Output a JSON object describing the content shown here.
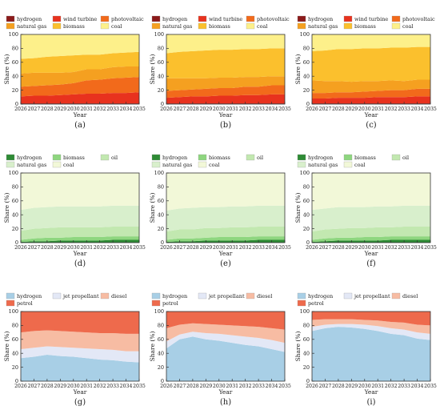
{
  "figure": {
    "panel_labels": [
      "(a)",
      "(b)",
      "(c)",
      "(d)",
      "(e)",
      "(f)",
      "(g)",
      "(h)",
      "(i)"
    ]
  },
  "chart_data": [
    {
      "type": "area",
      "panel": "(a)",
      "stacked": true,
      "x": [
        2026,
        2027,
        2028,
        2029,
        2030,
        2031,
        2032,
        2033,
        2034,
        2035
      ],
      "xlabel": "Year",
      "ylabel": "Share (%)",
      "ylim": [
        0,
        100
      ],
      "yticks": [
        0,
        20,
        40,
        60,
        80,
        100
      ],
      "legend": "top",
      "series": [
        {
          "name": "hydrogen",
          "color": "#8b1a1a",
          "values": [
            1,
            1,
            1,
            1,
            1,
            1,
            1,
            1,
            1,
            1
          ]
        },
        {
          "name": "wind turbine",
          "color": "#e8321e",
          "values": [
            10,
            11,
            11,
            12,
            13,
            14,
            14,
            15,
            15,
            16
          ]
        },
        {
          "name": "photovoltaic",
          "color": "#f26a1b",
          "values": [
            14,
            14,
            15,
            15,
            16,
            19,
            20,
            21,
            22,
            22
          ]
        },
        {
          "name": "natural gas",
          "color": "#f5a020",
          "values": [
            19,
            19,
            18,
            17,
            16,
            16,
            15,
            16,
            16,
            15
          ]
        },
        {
          "name": "biomass",
          "color": "#fbc02d",
          "values": [
            21,
            21,
            23,
            24,
            24,
            21,
            21,
            20,
            20,
            21
          ]
        },
        {
          "name": "coal",
          "color": "#fdf08a",
          "values": [
            35,
            34,
            32,
            31,
            30,
            29,
            29,
            27,
            26,
            25
          ]
        }
      ]
    },
    {
      "type": "area",
      "panel": "(b)",
      "stacked": true,
      "x": [
        2026,
        2027,
        2028,
        2029,
        2030,
        2031,
        2032,
        2033,
        2034,
        2035
      ],
      "xlabel": "Year",
      "ylabel": "Share (%)",
      "ylim": [
        0,
        100
      ],
      "yticks": [
        0,
        20,
        40,
        60,
        80,
        100
      ],
      "legend": "top",
      "series": [
        {
          "name": "hydrogen",
          "color": "#8b1a1a",
          "values": [
            1,
            1,
            1,
            1,
            1,
            1,
            1,
            1,
            1,
            1
          ]
        },
        {
          "name": "wind turbine",
          "color": "#e8321e",
          "values": [
            8,
            9,
            10,
            10,
            11,
            11,
            12,
            12,
            13,
            13
          ]
        },
        {
          "name": "photovoltaic",
          "color": "#f26a1b",
          "values": [
            10,
            10,
            10,
            11,
            11,
            11,
            12,
            12,
            13,
            13
          ]
        },
        {
          "name": "natural gas",
          "color": "#f5a020",
          "values": [
            18,
            17,
            16,
            15,
            15,
            15,
            14,
            14,
            13,
            13
          ]
        },
        {
          "name": "biomass",
          "color": "#fbc02d",
          "values": [
            36,
            38,
            39,
            40,
            40,
            40,
            40,
            40,
            40,
            40
          ]
        },
        {
          "name": "coal",
          "color": "#fdf08a",
          "values": [
            27,
            25,
            24,
            23,
            22,
            22,
            21,
            21,
            20,
            20
          ]
        }
      ]
    },
    {
      "type": "area",
      "panel": "(c)",
      "stacked": true,
      "x": [
        2026,
        2027,
        2028,
        2029,
        2030,
        2031,
        2032,
        2033,
        2034,
        2035
      ],
      "xlabel": "Year",
      "ylabel": "Share (%)",
      "ylim": [
        0,
        100
      ],
      "yticks": [
        0,
        20,
        40,
        60,
        80,
        100
      ],
      "legend": "top",
      "series": [
        {
          "name": "hydrogen",
          "color": "#8b1a1a",
          "values": [
            1,
            1,
            1,
            1,
            1,
            1,
            1,
            1,
            1,
            1
          ]
        },
        {
          "name": "wind turbine",
          "color": "#e8321e",
          "values": [
            7,
            7,
            8,
            8,
            8,
            9,
            9,
            9,
            10,
            10
          ]
        },
        {
          "name": "photovoltaic",
          "color": "#f26a1b",
          "values": [
            8,
            8,
            8,
            8,
            9,
            9,
            10,
            10,
            11,
            11
          ]
        },
        {
          "name": "natural gas",
          "color": "#f5a020",
          "values": [
            18,
            17,
            16,
            15,
            15,
            14,
            14,
            13,
            13,
            13
          ]
        },
        {
          "name": "biomass",
          "color": "#fbc02d",
          "values": [
            42,
            44,
            46,
            47,
            47,
            47,
            47,
            48,
            47,
            47
          ]
        },
        {
          "name": "coal",
          "color": "#fdf08a",
          "values": [
            24,
            23,
            21,
            21,
            20,
            20,
            19,
            19,
            18,
            18
          ]
        }
      ]
    },
    {
      "type": "area",
      "panel": "(d)",
      "stacked": true,
      "x": [
        2026,
        2027,
        2028,
        2029,
        2030,
        2031,
        2032,
        2033,
        2034,
        2035
      ],
      "xlabel": "Year",
      "ylabel": "Share (%)",
      "ylim": [
        0,
        100
      ],
      "yticks": [
        0,
        20,
        40,
        60,
        80,
        100
      ],
      "legend": "top",
      "series": [
        {
          "name": "hydrogen",
          "color": "#2e8b35",
          "values": [
            1,
            2,
            2,
            3,
            3,
            3,
            3,
            4,
            4,
            4
          ]
        },
        {
          "name": "biomass",
          "color": "#8ed67f",
          "values": [
            3,
            4,
            5,
            4,
            5,
            5,
            5,
            5,
            5,
            5
          ]
        },
        {
          "name": "oil",
          "color": "#c2e8b0",
          "values": [
            13,
            14,
            14,
            15,
            14,
            14,
            14,
            14,
            14,
            14
          ]
        },
        {
          "name": "natural gas",
          "color": "#d8efcc",
          "values": [
            30,
            30,
            30,
            30,
            30,
            30,
            30,
            30,
            30,
            30
          ]
        },
        {
          "name": "coal",
          "color": "#f2f8d8",
          "values": [
            53,
            50,
            49,
            48,
            48,
            48,
            48,
            47,
            47,
            47
          ]
        }
      ]
    },
    {
      "type": "area",
      "panel": "(e)",
      "stacked": true,
      "x": [
        2026,
        2027,
        2028,
        2029,
        2030,
        2031,
        2032,
        2033,
        2034,
        2035
      ],
      "xlabel": "Year",
      "ylabel": "Share (%)",
      "ylim": [
        0,
        100
      ],
      "yticks": [
        0,
        20,
        40,
        60,
        80,
        100
      ],
      "legend": "top",
      "series": [
        {
          "name": "hydrogen",
          "color": "#2e8b35",
          "values": [
            1,
            2,
            2,
            3,
            3,
            3,
            3,
            4,
            4,
            4
          ]
        },
        {
          "name": "biomass",
          "color": "#8ed67f",
          "values": [
            3,
            4,
            4,
            4,
            5,
            5,
            5,
            5,
            5,
            5
          ]
        },
        {
          "name": "oil",
          "color": "#c2e8b0",
          "values": [
            12,
            13,
            13,
            14,
            13,
            14,
            14,
            14,
            14,
            14
          ]
        },
        {
          "name": "natural gas",
          "color": "#d8efcc",
          "values": [
            30,
            30,
            31,
            30,
            30,
            30,
            30,
            30,
            30,
            30
          ]
        },
        {
          "name": "coal",
          "color": "#f2f8d8",
          "values": [
            54,
            51,
            50,
            49,
            49,
            48,
            48,
            47,
            47,
            47
          ]
        }
      ]
    },
    {
      "type": "area",
      "panel": "(f)",
      "stacked": true,
      "x": [
        2026,
        2027,
        2028,
        2029,
        2030,
        2031,
        2032,
        2033,
        2034,
        2035
      ],
      "xlabel": "Year",
      "ylabel": "Share (%)",
      "ylim": [
        0,
        100
      ],
      "yticks": [
        0,
        20,
        40,
        60,
        80,
        100
      ],
      "legend": "top",
      "series": [
        {
          "name": "hydrogen",
          "color": "#2e8b35",
          "values": [
            1,
            2,
            3,
            3,
            3,
            3,
            4,
            4,
            4,
            4
          ]
        },
        {
          "name": "biomass",
          "color": "#8ed67f",
          "values": [
            3,
            4,
            4,
            4,
            5,
            5,
            5,
            5,
            5,
            5
          ]
        },
        {
          "name": "oil",
          "color": "#c2e8b0",
          "values": [
            12,
            13,
            13,
            14,
            13,
            14,
            13,
            14,
            14,
            14
          ]
        },
        {
          "name": "natural gas",
          "color": "#d8efcc",
          "values": [
            31,
            30,
            31,
            30,
            30,
            30,
            30,
            30,
            30,
            30
          ]
        },
        {
          "name": "coal",
          "color": "#f2f8d8",
          "values": [
            53,
            51,
            49,
            49,
            49,
            48,
            48,
            47,
            47,
            47
          ]
        }
      ]
    },
    {
      "type": "area",
      "panel": "(g)",
      "stacked": true,
      "x": [
        2026,
        2027,
        2028,
        2029,
        2030,
        2031,
        2032,
        2033,
        2034,
        2035
      ],
      "xlabel": "Year",
      "ylabel": "Share (%)",
      "ylim": [
        0,
        100
      ],
      "yticks": [
        0,
        20,
        40,
        60,
        80,
        100
      ],
      "legend": "top",
      "series": [
        {
          "name": "hydrogen",
          "color": "#a8cfe6",
          "values": [
            33,
            35,
            38,
            36,
            35,
            33,
            31,
            30,
            28,
            27
          ]
        },
        {
          "name": "jet propellant",
          "color": "#e3e8f6",
          "values": [
            13,
            13,
            12,
            13,
            13,
            14,
            15,
            15,
            15,
            16
          ]
        },
        {
          "name": "diesel",
          "color": "#f7bca3",
          "values": [
            24,
            24,
            23,
            23,
            23,
            23,
            23,
            24,
            25,
            25
          ]
        },
        {
          "name": "petrol",
          "color": "#ee6a4c",
          "values": [
            30,
            28,
            27,
            28,
            29,
            30,
            31,
            31,
            32,
            32
          ]
        }
      ]
    },
    {
      "type": "area",
      "panel": "(h)",
      "stacked": true,
      "x": [
        2026,
        2027,
        2028,
        2029,
        2030,
        2031,
        2032,
        2033,
        2034,
        2035
      ],
      "xlabel": "Year",
      "ylabel": "Share (%)",
      "ylim": [
        0,
        100
      ],
      "yticks": [
        0,
        20,
        40,
        60,
        80,
        100
      ],
      "legend": "top",
      "series": [
        {
          "name": "hydrogen",
          "color": "#a8cfe6",
          "values": [
            47,
            60,
            64,
            60,
            58,
            55,
            52,
            50,
            46,
            42
          ]
        },
        {
          "name": "jet propellant",
          "color": "#e3e8f6",
          "values": [
            10,
            7,
            7,
            9,
            10,
            11,
            12,
            12,
            13,
            13
          ]
        },
        {
          "name": "diesel",
          "color": "#f7bca3",
          "values": [
            19,
            14,
            12,
            13,
            13,
            14,
            15,
            16,
            17,
            19
          ]
        },
        {
          "name": "petrol",
          "color": "#ee6a4c",
          "values": [
            24,
            19,
            17,
            18,
            19,
            20,
            21,
            22,
            24,
            26
          ]
        }
      ]
    },
    {
      "type": "area",
      "panel": "(i)",
      "stacked": true,
      "x": [
        2026,
        2027,
        2028,
        2029,
        2030,
        2031,
        2032,
        2033,
        2034,
        2035
      ],
      "xlabel": "Year",
      "ylabel": "Share (%)",
      "ylim": [
        0,
        100
      ],
      "yticks": [
        0,
        20,
        40,
        60,
        80,
        100
      ],
      "legend": "top",
      "series": [
        {
          "name": "hydrogen",
          "color": "#a8cfe6",
          "values": [
            72,
            76,
            78,
            77,
            75,
            72,
            68,
            66,
            61,
            59
          ]
        },
        {
          "name": "jet propellant",
          "color": "#e3e8f6",
          "values": [
            6,
            5,
            4,
            5,
            6,
            7,
            8,
            8,
            9,
            9
          ]
        },
        {
          "name": "diesel",
          "color": "#f7bca3",
          "values": [
            10,
            8,
            7,
            7,
            7,
            8,
            9,
            10,
            11,
            12
          ]
        },
        {
          "name": "petrol",
          "color": "#ee6a4c",
          "values": [
            12,
            11,
            11,
            11,
            12,
            13,
            15,
            16,
            19,
            20
          ]
        }
      ]
    }
  ]
}
